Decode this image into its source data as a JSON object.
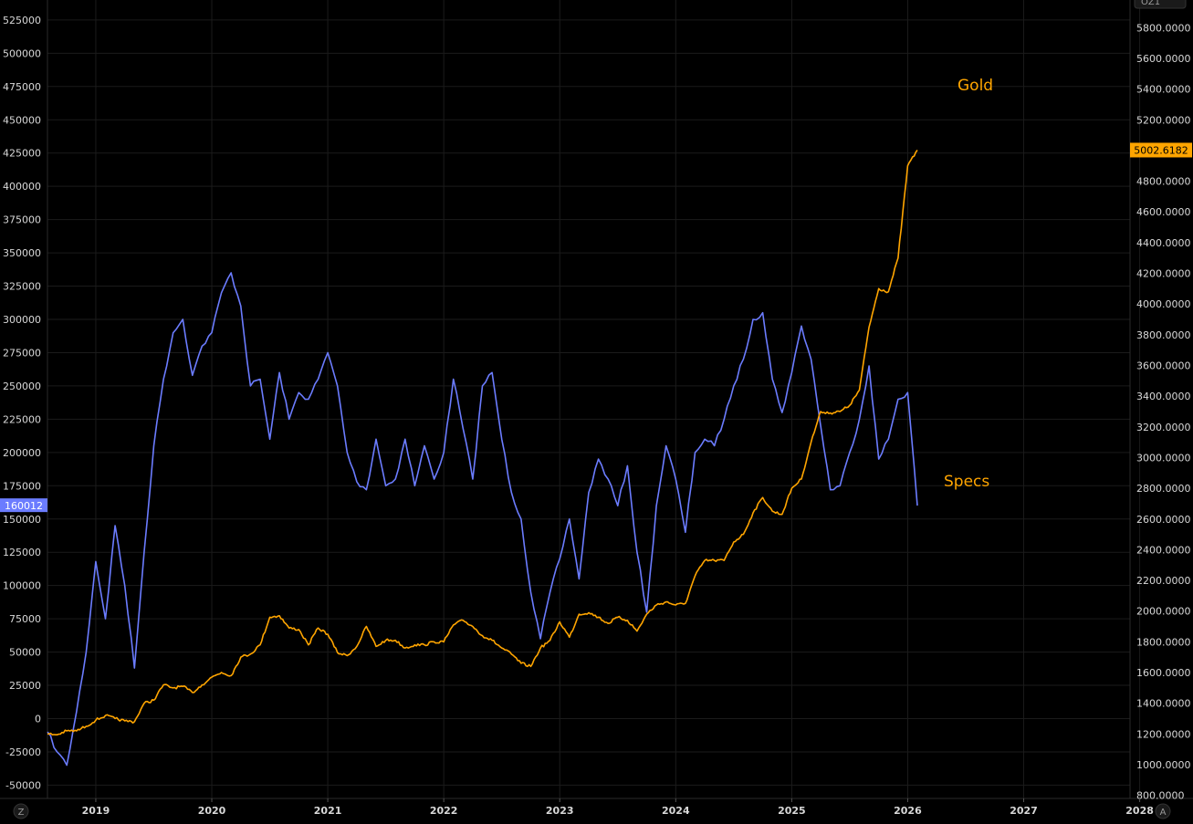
{
  "chart_data": {
    "type": "line",
    "x_range": [
      "2018-08",
      "2027-12"
    ],
    "x_ticks": [
      "2019",
      "2020",
      "2021",
      "2022",
      "2023",
      "2024",
      "2025",
      "2026",
      "2027",
      "2028"
    ],
    "y_left": {
      "range": [
        -60000,
        540000
      ],
      "ticks": [
        -50000,
        -25000,
        0,
        25000,
        50000,
        75000,
        100000,
        125000,
        150000,
        175000,
        200000,
        225000,
        250000,
        275000,
        300000,
        325000,
        350000,
        375000,
        400000,
        425000,
        450000,
        475000,
        500000,
        525000
      ],
      "tick_labels": [
        "-50000",
        "-25000",
        "0",
        "25000",
        "50000",
        "75000",
        "100000",
        "125000",
        "150000",
        "175000",
        "200000",
        "225000",
        "250000",
        "275000",
        "300000",
        "325000",
        "350000",
        "375000",
        "400000",
        "425000",
        "450000",
        "475000",
        "500000",
        "525000"
      ]
    },
    "y_right": {
      "range": [
        780,
        5980
      ],
      "ticks": [
        800,
        1000,
        1200,
        1400,
        1600,
        1800,
        2000,
        2200,
        2400,
        2600,
        2800,
        3000,
        3200,
        3400,
        3600,
        3800,
        4000,
        4200,
        4400,
        4600,
        4800,
        5000,
        5200,
        5400,
        5600,
        5800
      ],
      "tick_labels": [
        "800.0000",
        "1000.0000",
        "1200.0000",
        "1400.0000",
        "1600.0000",
        "1800.0000",
        "2000.0000",
        "2200.0000",
        "2400.0000",
        "2600.0000",
        "2800.0000",
        "3000.0000",
        "3200.0000",
        "3400.0000",
        "3600.0000",
        "3800.0000",
        "4000.0000",
        "4200.0000",
        "4400.0000",
        "4600.0000",
        "4800.0000",
        "5000.0000",
        "5200.0000",
        "5400.0000",
        "5600.0000",
        "5800.0000"
      ]
    },
    "grid": true,
    "series": [
      {
        "name": "Specs",
        "axis": "left",
        "color": "#6b7cff",
        "last_value_label": "160012",
        "points": [
          [
            "2018-08",
            -10000
          ],
          [
            "2018-09",
            -25000
          ],
          [
            "2018-10",
            -35000
          ],
          [
            "2018-11",
            5000
          ],
          [
            "2018-12",
            50000
          ],
          [
            "2019-01",
            118000
          ],
          [
            "2019-02",
            75000
          ],
          [
            "2019-03",
            145000
          ],
          [
            "2019-04",
            100000
          ],
          [
            "2019-05",
            38000
          ],
          [
            "2019-06",
            125000
          ],
          [
            "2019-07",
            205000
          ],
          [
            "2019-08",
            255000
          ],
          [
            "2019-09",
            290000
          ],
          [
            "2019-10",
            300000
          ],
          [
            "2019-11",
            258000
          ],
          [
            "2019-12",
            280000
          ],
          [
            "2020-01",
            290000
          ],
          [
            "2020-02",
            320000
          ],
          [
            "2020-03",
            335000
          ],
          [
            "2020-04",
            310000
          ],
          [
            "2020-05",
            250000
          ],
          [
            "2020-06",
            255000
          ],
          [
            "2020-07",
            210000
          ],
          [
            "2020-08",
            260000
          ],
          [
            "2020-09",
            225000
          ],
          [
            "2020-10",
            245000
          ],
          [
            "2020-11",
            240000
          ],
          [
            "2020-12",
            255000
          ],
          [
            "2021-01",
            275000
          ],
          [
            "2021-02",
            250000
          ],
          [
            "2021-03",
            200000
          ],
          [
            "2021-04",
            178000
          ],
          [
            "2021-05",
            172000
          ],
          [
            "2021-06",
            210000
          ],
          [
            "2021-07",
            175000
          ],
          [
            "2021-08",
            180000
          ],
          [
            "2021-09",
            210000
          ],
          [
            "2021-10",
            175000
          ],
          [
            "2021-11",
            205000
          ],
          [
            "2021-12",
            180000
          ],
          [
            "2022-01",
            200000
          ],
          [
            "2022-02",
            255000
          ],
          [
            "2022-03",
            218000
          ],
          [
            "2022-04",
            180000
          ],
          [
            "2022-05",
            250000
          ],
          [
            "2022-06",
            260000
          ],
          [
            "2022-07",
            210000
          ],
          [
            "2022-08",
            170000
          ],
          [
            "2022-09",
            150000
          ],
          [
            "2022-10",
            95000
          ],
          [
            "2022-11",
            60000
          ],
          [
            "2022-12",
            95000
          ],
          [
            "2023-01",
            120000
          ],
          [
            "2023-02",
            150000
          ],
          [
            "2023-03",
            105000
          ],
          [
            "2023-04",
            170000
          ],
          [
            "2023-05",
            195000
          ],
          [
            "2023-06",
            180000
          ],
          [
            "2023-07",
            160000
          ],
          [
            "2023-08",
            190000
          ],
          [
            "2023-09",
            125000
          ],
          [
            "2023-10",
            80000
          ],
          [
            "2023-11",
            160000
          ],
          [
            "2023-12",
            205000
          ],
          [
            "2024-01",
            180000
          ],
          [
            "2024-02",
            140000
          ],
          [
            "2024-03",
            200000
          ],
          [
            "2024-04",
            210000
          ],
          [
            "2024-05",
            205000
          ],
          [
            "2024-06",
            225000
          ],
          [
            "2024-07",
            250000
          ],
          [
            "2024-08",
            270000
          ],
          [
            "2024-09",
            300000
          ],
          [
            "2024-10",
            305000
          ],
          [
            "2024-11",
            255000
          ],
          [
            "2024-12",
            230000
          ],
          [
            "2025-01",
            260000
          ],
          [
            "2025-02",
            295000
          ],
          [
            "2025-03",
            270000
          ],
          [
            "2025-04",
            220000
          ],
          [
            "2025-05",
            172000
          ],
          [
            "2025-06",
            175000
          ],
          [
            "2025-07",
            200000
          ],
          [
            "2025-08",
            225000
          ],
          [
            "2025-09",
            265000
          ],
          [
            "2025-10",
            195000
          ],
          [
            "2025-11",
            210000
          ],
          [
            "2025-12",
            240000
          ],
          [
            "2026-01",
            245000
          ],
          [
            "2026-02",
            160012
          ]
        ]
      },
      {
        "name": "Gold",
        "axis": "right",
        "color": "#ffa500",
        "last_value_label": "5002.6182",
        "points": [
          [
            "2018-08",
            1200
          ],
          [
            "2018-09",
            1195
          ],
          [
            "2018-10",
            1220
          ],
          [
            "2018-11",
            1220
          ],
          [
            "2018-12",
            1250
          ],
          [
            "2019-01",
            1290
          ],
          [
            "2019-02",
            1320
          ],
          [
            "2019-03",
            1300
          ],
          [
            "2019-04",
            1285
          ],
          [
            "2019-05",
            1280
          ],
          [
            "2019-06",
            1400
          ],
          [
            "2019-07",
            1420
          ],
          [
            "2019-08",
            1520
          ],
          [
            "2019-09",
            1500
          ],
          [
            "2019-10",
            1510
          ],
          [
            "2019-11",
            1470
          ],
          [
            "2019-12",
            1520
          ],
          [
            "2020-01",
            1570
          ],
          [
            "2020-02",
            1600
          ],
          [
            "2020-03",
            1580
          ],
          [
            "2020-04",
            1700
          ],
          [
            "2020-05",
            1720
          ],
          [
            "2020-06",
            1780
          ],
          [
            "2020-07",
            1960
          ],
          [
            "2020-08",
            1970
          ],
          [
            "2020-09",
            1890
          ],
          [
            "2020-10",
            1880
          ],
          [
            "2020-11",
            1780
          ],
          [
            "2020-12",
            1890
          ],
          [
            "2021-01",
            1850
          ],
          [
            "2021-02",
            1730
          ],
          [
            "2021-03",
            1710
          ],
          [
            "2021-04",
            1770
          ],
          [
            "2021-05",
            1900
          ],
          [
            "2021-06",
            1770
          ],
          [
            "2021-07",
            1810
          ],
          [
            "2021-08",
            1810
          ],
          [
            "2021-09",
            1760
          ],
          [
            "2021-10",
            1780
          ],
          [
            "2021-11",
            1780
          ],
          [
            "2021-12",
            1800
          ],
          [
            "2022-01",
            1800
          ],
          [
            "2022-02",
            1910
          ],
          [
            "2022-03",
            1940
          ],
          [
            "2022-04",
            1900
          ],
          [
            "2022-05",
            1840
          ],
          [
            "2022-06",
            1810
          ],
          [
            "2022-07",
            1760
          ],
          [
            "2022-08",
            1720
          ],
          [
            "2022-09",
            1660
          ],
          [
            "2022-10",
            1640
          ],
          [
            "2022-11",
            1760
          ],
          [
            "2022-12",
            1810
          ],
          [
            "2023-01",
            1930
          ],
          [
            "2023-02",
            1830
          ],
          [
            "2023-03",
            1980
          ],
          [
            "2023-04",
            1990
          ],
          [
            "2023-05",
            1960
          ],
          [
            "2023-06",
            1920
          ],
          [
            "2023-07",
            1960
          ],
          [
            "2023-08",
            1940
          ],
          [
            "2023-09",
            1870
          ],
          [
            "2023-10",
            1980
          ],
          [
            "2023-11",
            2040
          ],
          [
            "2023-12",
            2060
          ],
          [
            "2024-01",
            2040
          ],
          [
            "2024-02",
            2050
          ],
          [
            "2024-03",
            2230
          ],
          [
            "2024-04",
            2330
          ],
          [
            "2024-05",
            2330
          ],
          [
            "2024-06",
            2330
          ],
          [
            "2024-07",
            2450
          ],
          [
            "2024-08",
            2500
          ],
          [
            "2024-09",
            2640
          ],
          [
            "2024-10",
            2740
          ],
          [
            "2024-11",
            2650
          ],
          [
            "2024-12",
            2630
          ],
          [
            "2025-01",
            2800
          ],
          [
            "2025-02",
            2860
          ],
          [
            "2025-03",
            3100
          ],
          [
            "2025-04",
            3300
          ],
          [
            "2025-05",
            3290
          ],
          [
            "2025-06",
            3300
          ],
          [
            "2025-07",
            3340
          ],
          [
            "2025-08",
            3440
          ],
          [
            "2025-09",
            3850
          ],
          [
            "2025-10",
            4100
          ],
          [
            "2025-11",
            4080
          ],
          [
            "2025-12",
            4300
          ],
          [
            "2026-01",
            4900
          ],
          [
            "2026-02",
            5002.6182
          ]
        ]
      }
    ],
    "annotations": [
      {
        "text": "Gold",
        "color": "#ffa500"
      },
      {
        "text": "Specs",
        "color": "#ffa500"
      }
    ],
    "corner_labels": {
      "bottom_left": "Z",
      "bottom_right": "A",
      "top_right": "OZ1"
    }
  }
}
